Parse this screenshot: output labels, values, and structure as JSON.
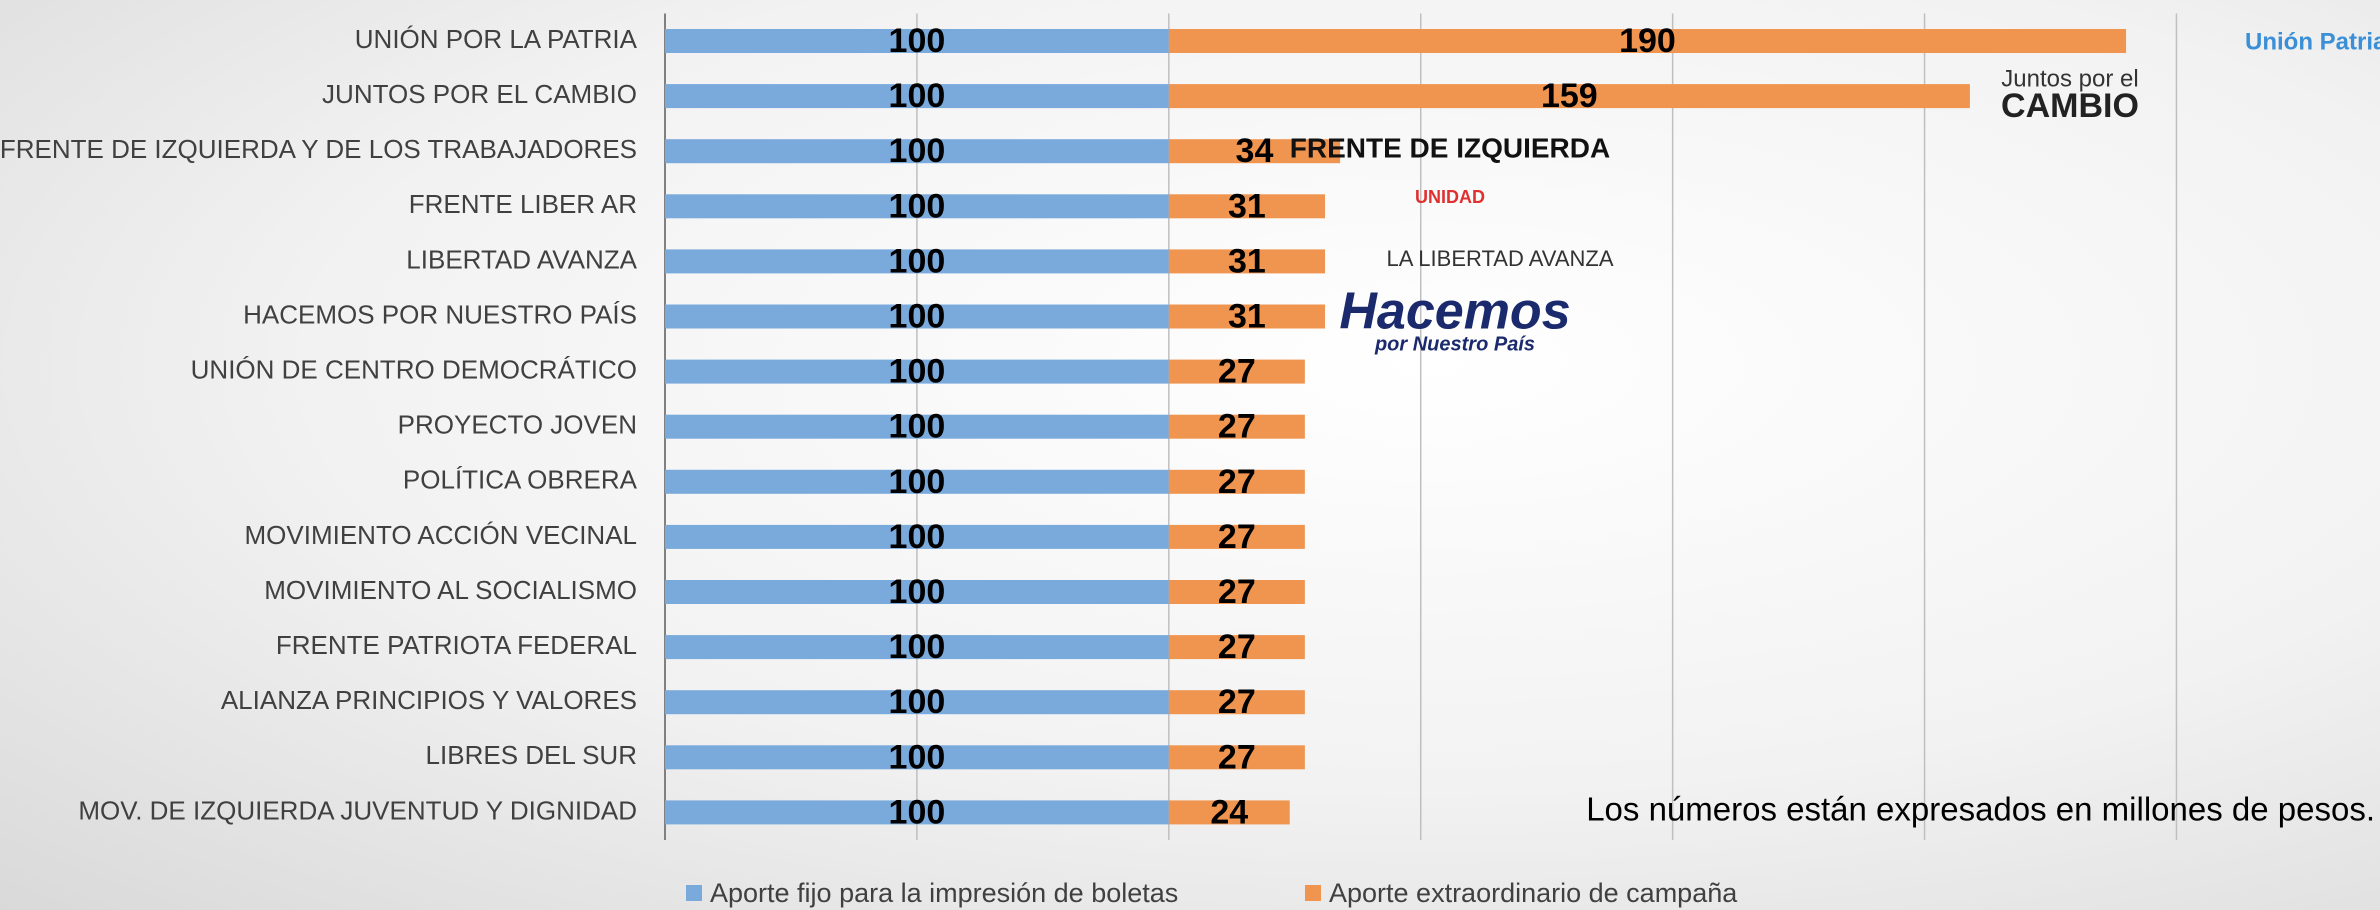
{
  "chart_data": {
    "type": "stacked-bar-horizontal",
    "categories": [
      "UNIÓN POR LA PATRIA",
      "JUNTOS POR EL CAMBIO",
      "FRENTE DE IZQUIERDA Y DE LOS TRABAJADORES",
      "FRENTE LIBER AR",
      "LIBERTAD AVANZA",
      "HACEMOS POR NUESTRO PAÍS",
      "UNIÓN DE CENTRO DEMOCRÁTICO",
      "PROYECTO JOVEN",
      "POLÍTICA OBRERA",
      "MOVIMIENTO ACCIÓN VECINAL",
      "MOVIMIENTO AL SOCIALISMO",
      "FRENTE PATRIOTA FEDERAL",
      "ALIANZA PRINCIPIOS Y VALORES",
      "LIBRES DEL SUR",
      "MOV. DE IZQUIERDA JUVENTUD Y DIGNIDAD"
    ],
    "series": [
      {
        "name": "Aporte fijo para la impresión de boletas",
        "color": "#7aaadc",
        "values": [
          100,
          100,
          100,
          100,
          100,
          100,
          100,
          100,
          100,
          100,
          100,
          100,
          100,
          100,
          100
        ]
      },
      {
        "name": "Aporte extraordinario de campaña",
        "color": "#f0954f",
        "values": [
          190,
          159,
          34,
          31,
          31,
          31,
          27,
          27,
          27,
          27,
          27,
          27,
          27,
          27,
          24
        ]
      }
    ],
    "xlim": [
      0,
      340
    ],
    "xticks": [
      0,
      50,
      100,
      150,
      200,
      250,
      300
    ],
    "grid": true,
    "legend": "bottom",
    "annotation": "Los números están expresados en millones de pesos.",
    "logos": [
      "Unión Patria",
      "Juntos por el",
      "CAMBIO",
      "FRENTE DE IZQUIERDA",
      "UNIDAD",
      "LA LIBERTAD AVANZA",
      "Hacemos",
      "por Nuestro País"
    ]
  }
}
